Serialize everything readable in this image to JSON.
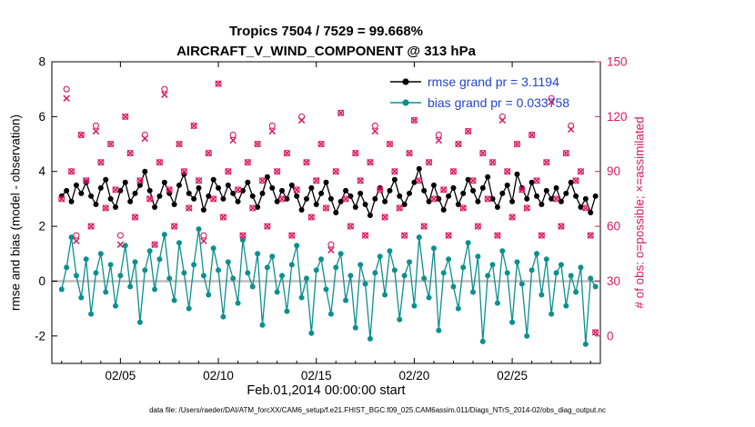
{
  "title": {
    "line1": "Tropics 7504 / 7529 = 99.668%",
    "line2": "AIRCRAFT_V_WIND_COMPONENT @ 313 hPa"
  },
  "legend": [
    {
      "name": "rmse",
      "label": "rmse grand pr = 3.1194",
      "color": "#000000"
    },
    {
      "name": "bias",
      "label": "bias grand pr = 0.033758",
      "color": "#0d8f8f"
    }
  ],
  "colors": {
    "obs_pink": "#d81b60",
    "teal": "#0d8f8f",
    "legend_blue": "#2244cc",
    "zero_line_gray": "#bdbdbd"
  },
  "axes": {
    "left": {
      "label": "rmse and bias (model - observation)",
      "ticks": [
        -2,
        0,
        2,
        4,
        6,
        8
      ]
    },
    "right": {
      "label": "# of obs: o=possible; ×=assimilated",
      "ticks": [
        0,
        30,
        60,
        90,
        120,
        150
      ],
      "color": "#d81b60"
    },
    "x": {
      "label": "Feb.01,2014 00:00:00 start",
      "tick_positions": [
        4,
        9,
        14,
        19,
        24
      ],
      "tick_labels": [
        "02/05",
        "02/10",
        "02/15",
        "02/20",
        "02/25"
      ]
    }
  },
  "caption": "data file: /Users/raeder/DAI/ATM_forcXX/CAM6_setup/f.e21.FHIST_BGC.f09_025.CAM6assim.011/Diags_NTrS_2014-02/obs_diag_output.nc",
  "chart_data": {
    "type": "line",
    "title": "Tropics 7504 / 7529 = 99.668% | AIRCRAFT_V_WIND_COMPONENT @ 313 hPa",
    "xlabel": "Feb.01,2014 00:00:00 start",
    "ylabel_left": "rmse and bias (model - observation)",
    "ylabel_right": "# of obs: o=possible; ×=assimilated",
    "xlim": [
      0.5,
      28.5
    ],
    "ylim_left": [
      -3,
      8
    ],
    "ylim_right": [
      -15,
      150
    ],
    "x_start": 1,
    "x_step": 0.25,
    "x_unit": "days since Feb.01,2014 00:00:00",
    "grid": false,
    "legend_position": "top-right-inside",
    "series": [
      {
        "name": "rmse",
        "axis": "left",
        "style": "line-dot",
        "color": "#000000",
        "grand_mean": 3.1194,
        "values": [
          3.1,
          3.3,
          2.9,
          3.5,
          3.2,
          3.6,
          3.1,
          2.8,
          3.4,
          3.7,
          3.0,
          2.7,
          3.3,
          3.6,
          2.9,
          3.2,
          3.5,
          4.0,
          3.3,
          2.7,
          3.1,
          3.6,
          3.2,
          2.8,
          3.5,
          3.9,
          3.2,
          3.0,
          3.4,
          2.6,
          3.1,
          3.7,
          3.4,
          3.0,
          3.5,
          3.2,
          2.9,
          3.3,
          3.6,
          3.1,
          2.7,
          3.2,
          3.8,
          3.4,
          2.9,
          3.3,
          3.0,
          3.5,
          3.1,
          2.6,
          3.0,
          3.4,
          2.8,
          3.2,
          3.6,
          3.0,
          2.5,
          2.9,
          3.3,
          3.1,
          2.7,
          3.2,
          2.8,
          2.4,
          3.0,
          3.4,
          2.9,
          3.3,
          3.7,
          3.1,
          2.8,
          3.2,
          3.6,
          4.1,
          3.3,
          2.9,
          3.5,
          3.0,
          2.6,
          3.1,
          3.4,
          2.8,
          3.2,
          3.7,
          3.3,
          2.9,
          3.4,
          3.8,
          3.0,
          2.7,
          3.2,
          3.5,
          2.9,
          3.9,
          3.4,
          3.0,
          3.6,
          3.1,
          2.8,
          3.3,
          3.0,
          3.4,
          2.9,
          3.2,
          3.6,
          3.1,
          2.7,
          3.0,
          2.5,
          3.1
        ]
      },
      {
        "name": "bias",
        "axis": "left",
        "style": "line-dot",
        "color": "#0d8f8f",
        "grand_mean": 0.033758,
        "values": [
          -0.3,
          0.5,
          1.6,
          0.2,
          -0.6,
          0.8,
          -1.2,
          0.3,
          1.0,
          -0.4,
          0.6,
          -0.9,
          0.2,
          1.3,
          -0.2,
          0.7,
          -1.5,
          0.4,
          1.1,
          -0.3,
          0.8,
          1.7,
          0.1,
          -0.7,
          1.4,
          0.3,
          -1.0,
          0.6,
          1.9,
          0.2,
          -0.5,
          1.2,
          0.4,
          -1.3,
          0.7,
          0.1,
          -0.8,
          1.5,
          0.3,
          -0.2,
          1.0,
          -1.6,
          0.5,
          0.9,
          -0.4,
          0.2,
          -1.1,
          0.6,
          1.3,
          -0.6,
          0.1,
          -1.9,
          0.4,
          0.8,
          -0.3,
          -1.2,
          0.5,
          1.0,
          -0.7,
          0.2,
          -1.7,
          0.6,
          -0.1,
          -2.1,
          0.3,
          0.9,
          -0.5,
          1.1,
          0.4,
          -1.4,
          0.2,
          0.7,
          -0.9,
          1.6,
          0.1,
          -0.6,
          1.2,
          -1.8,
          0.3,
          0.8,
          -0.2,
          -1.0,
          0.5,
          1.4,
          -0.4,
          0.9,
          -2.2,
          0.2,
          0.6,
          -0.8,
          1.1,
          0.3,
          -1.5,
          0.7,
          -0.1,
          -2.0,
          0.4,
          1.0,
          -0.5,
          0.8,
          -1.2,
          0.3,
          0.6,
          -0.9,
          0.2,
          -0.4,
          0.5,
          -2.3,
          0.1,
          -0.2
        ]
      },
      {
        "name": "obs_possible",
        "axis": "right",
        "style": "marker",
        "marker": "circle",
        "color": "#d81b60",
        "values": [
          75,
          135,
          90,
          55,
          110,
          85,
          60,
          115,
          95,
          70,
          105,
          80,
          55,
          120,
          100,
          65,
          85,
          110,
          75,
          50,
          95,
          135,
          80,
          60,
          105,
          90,
          70,
          115,
          85,
          55,
          100,
          75,
          138,
          65,
          90,
          110,
          80,
          55,
          95,
          70,
          105,
          85,
          60,
          115,
          90,
          75,
          100,
          55,
          80,
          120,
          95,
          65,
          85,
          105,
          70,
          50,
          90,
          122,
          75,
          60,
          100,
          85,
          55,
          95,
          115,
          80,
          65,
          105,
          90,
          70,
          55,
          100,
          118,
          85,
          60,
          95,
          75,
          110,
          80,
          55,
          90,
          105,
          70,
          112,
          85,
          60,
          100,
          75,
          95,
          55,
          120,
          90,
          65,
          105,
          80,
          70,
          110,
          85,
          55,
          95,
          130,
          75,
          60,
          100,
          115,
          85,
          90,
          70,
          55,
          2
        ]
      },
      {
        "name": "obs_assimilated",
        "axis": "right",
        "style": "marker",
        "marker": "x",
        "color": "#d81b60",
        "values": [
          75,
          130,
          90,
          52,
          110,
          85,
          60,
          112,
          95,
          70,
          105,
          80,
          50,
          120,
          100,
          65,
          85,
          108,
          75,
          50,
          95,
          132,
          80,
          60,
          105,
          90,
          70,
          115,
          85,
          52,
          100,
          75,
          138,
          65,
          90,
          107,
          80,
          55,
          95,
          70,
          105,
          85,
          60,
          112,
          90,
          75,
          100,
          55,
          80,
          118,
          95,
          65,
          85,
          105,
          70,
          47,
          90,
          122,
          75,
          60,
          100,
          85,
          55,
          95,
          112,
          80,
          65,
          105,
          90,
          70,
          55,
          100,
          118,
          85,
          60,
          95,
          75,
          107,
          80,
          55,
          90,
          105,
          70,
          112,
          85,
          60,
          100,
          75,
          95,
          55,
          118,
          90,
          65,
          105,
          80,
          70,
          110,
          85,
          55,
          95,
          128,
          75,
          60,
          100,
          113,
          85,
          90,
          70,
          55,
          2
        ]
      }
    ],
    "zero_line": 0
  }
}
